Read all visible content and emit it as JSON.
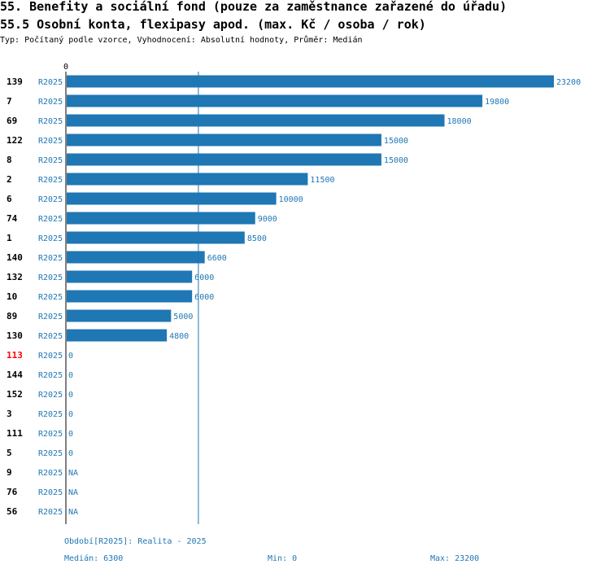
{
  "header": {
    "title": "55. Benefity a sociální fond (pouze za zaměstnance zařazené do úřadu)",
    "subtitle": "55.5 Osobní konta, flexipasy apod. (max. Kč / osoba / rok)",
    "meta": "Typ: Počítaný podle vzorce, Vyhodnocení: Absolutní hodnoty, Průměr: Medián"
  },
  "colors": {
    "bar": "#1f77b4",
    "highlight": "#ff0000",
    "text": "#000000"
  },
  "chart_data": {
    "type": "bar",
    "orientation": "horizontal",
    "x_tick_labels": [
      "0"
    ],
    "xlim": [
      0,
      23200
    ],
    "median_line": 6300,
    "rows": [
      {
        "id": "139",
        "period": "R2025",
        "value": 23200,
        "label": "23200",
        "highlight": false
      },
      {
        "id": "7",
        "period": "R2025",
        "value": 19800,
        "label": "19800",
        "highlight": false
      },
      {
        "id": "69",
        "period": "R2025",
        "value": 18000,
        "label": "18000",
        "highlight": false
      },
      {
        "id": "122",
        "period": "R2025",
        "value": 15000,
        "label": "15000",
        "highlight": false
      },
      {
        "id": "8",
        "period": "R2025",
        "value": 15000,
        "label": "15000",
        "highlight": false
      },
      {
        "id": "2",
        "period": "R2025",
        "value": 11500,
        "label": "11500",
        "highlight": false
      },
      {
        "id": "6",
        "period": "R2025",
        "value": 10000,
        "label": "10000",
        "highlight": false
      },
      {
        "id": "74",
        "period": "R2025",
        "value": 9000,
        "label": "9000",
        "highlight": false
      },
      {
        "id": "1",
        "period": "R2025",
        "value": 8500,
        "label": "8500",
        "highlight": false
      },
      {
        "id": "140",
        "period": "R2025",
        "value": 6600,
        "label": "6600",
        "highlight": false
      },
      {
        "id": "132",
        "period": "R2025",
        "value": 6000,
        "label": "6000",
        "highlight": false
      },
      {
        "id": "10",
        "period": "R2025",
        "value": 6000,
        "label": "6000",
        "highlight": false
      },
      {
        "id": "89",
        "period": "R2025",
        "value": 5000,
        "label": "5000",
        "highlight": false
      },
      {
        "id": "130",
        "period": "R2025",
        "value": 4800,
        "label": "4800",
        "highlight": false
      },
      {
        "id": "113",
        "period": "R2025",
        "value": 0,
        "label": "0",
        "highlight": true
      },
      {
        "id": "144",
        "period": "R2025",
        "value": 0,
        "label": "0",
        "highlight": false
      },
      {
        "id": "152",
        "period": "R2025",
        "value": 0,
        "label": "0",
        "highlight": false
      },
      {
        "id": "3",
        "period": "R2025",
        "value": 0,
        "label": "0",
        "highlight": false
      },
      {
        "id": "111",
        "period": "R2025",
        "value": 0,
        "label": "0",
        "highlight": false
      },
      {
        "id": "5",
        "period": "R2025",
        "value": 0,
        "label": "0",
        "highlight": false
      },
      {
        "id": "9",
        "period": "R2025",
        "value": null,
        "label": "NA",
        "highlight": false
      },
      {
        "id": "76",
        "period": "R2025",
        "value": null,
        "label": "NA",
        "highlight": false
      },
      {
        "id": "56",
        "period": "R2025",
        "value": null,
        "label": "NA",
        "highlight": false
      }
    ]
  },
  "footer": {
    "period": "Období[R2025]: Realita - 2025",
    "median": "Medián: 6300",
    "min": "Min: 0",
    "max": "Max: 23200"
  }
}
